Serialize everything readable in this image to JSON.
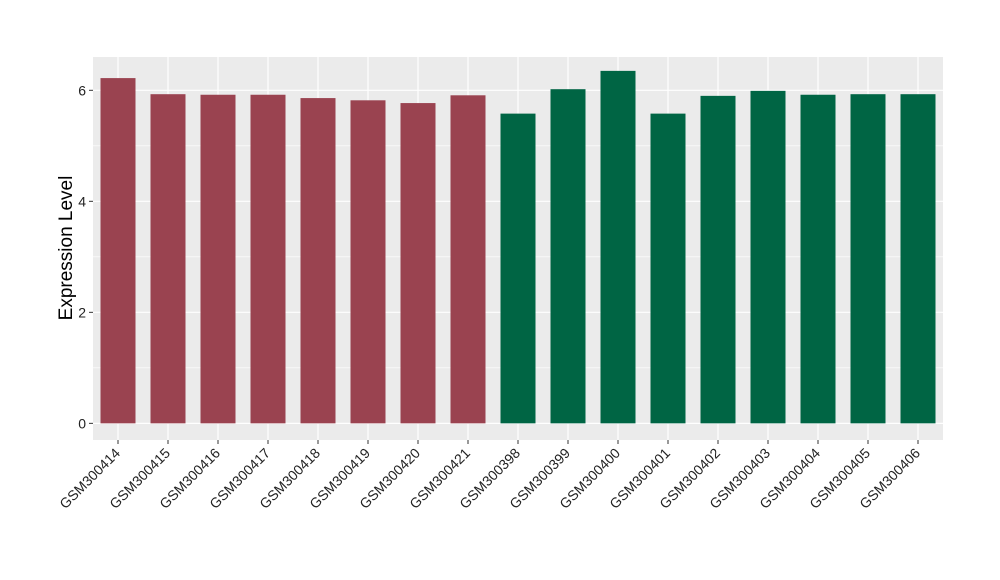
{
  "chart_data": {
    "type": "bar",
    "title": "",
    "xlabel": "",
    "ylabel": "Expression Level",
    "ylim": [
      -0.3,
      6.6
    ],
    "yticks": [
      0,
      2,
      4,
      6
    ],
    "grid": true,
    "legend": "none",
    "categories": [
      "GSM300414",
      "GSM300415",
      "GSM300416",
      "GSM300417",
      "GSM300418",
      "GSM300419",
      "GSM300420",
      "GSM300421",
      "GSM300398",
      "GSM300399",
      "GSM300400",
      "GSM300401",
      "GSM300402",
      "GSM300403",
      "GSM300404",
      "GSM300405",
      "GSM300406"
    ],
    "values": [
      6.22,
      5.93,
      5.92,
      5.92,
      5.86,
      5.82,
      5.77,
      5.91,
      5.58,
      6.02,
      6.35,
      5.58,
      5.9,
      5.99,
      5.92,
      5.93,
      5.93
    ],
    "bar_colors": [
      "#9a4350",
      "#9a4350",
      "#9a4350",
      "#9a4350",
      "#9a4350",
      "#9a4350",
      "#9a4350",
      "#9a4350",
      "#006544",
      "#006544",
      "#006544",
      "#006544",
      "#006544",
      "#006544",
      "#006544",
      "#006544",
      "#006544"
    ],
    "panel_background": "#ebebeb",
    "grid_color": "#ffffff"
  }
}
